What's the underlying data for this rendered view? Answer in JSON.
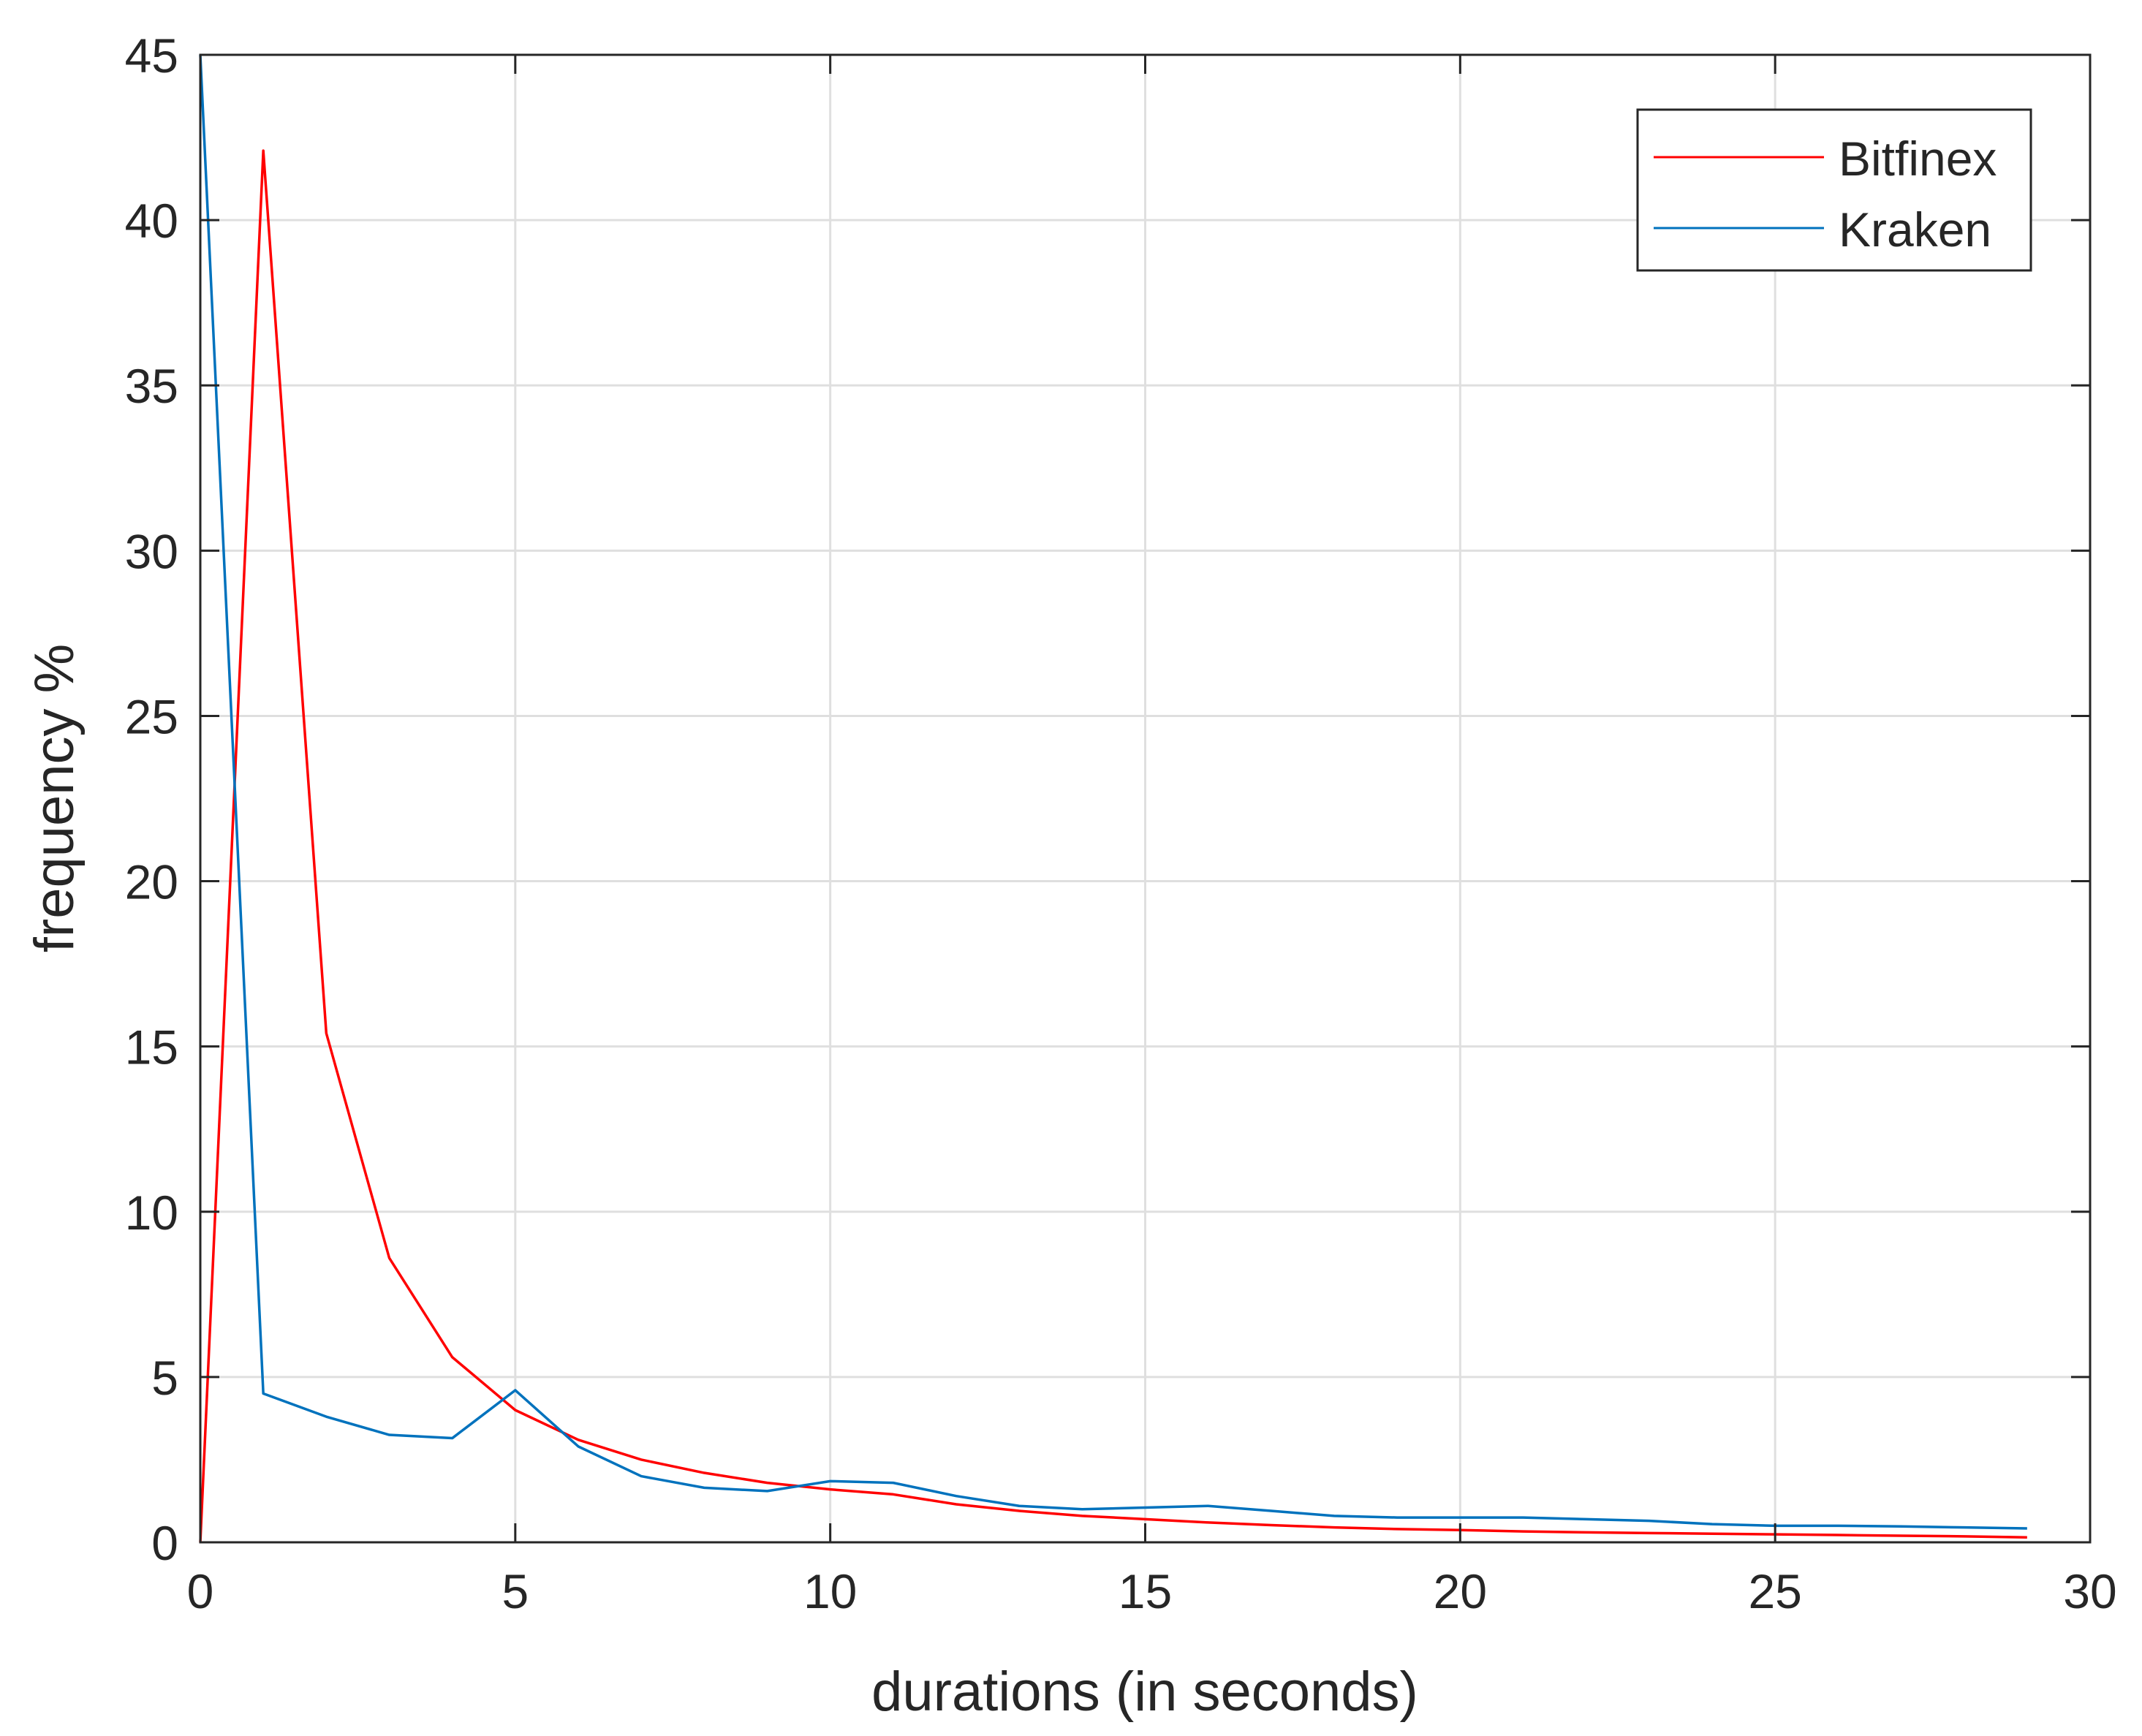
{
  "chart_data": {
    "type": "line",
    "title": "",
    "xlabel": "durations (in seconds)",
    "ylabel": "frequency %",
    "xlim": [
      0,
      30
    ],
    "ylim": [
      0,
      45
    ],
    "xticks": [
      0,
      5,
      10,
      15,
      20,
      25,
      30
    ],
    "yticks": [
      0,
      5,
      10,
      15,
      20,
      25,
      30,
      35,
      40,
      45
    ],
    "grid": true,
    "legend_position": "top-right",
    "x": [
      0,
      1,
      2,
      3,
      4,
      5,
      6,
      7,
      8,
      9,
      10,
      11,
      12,
      13,
      14,
      15,
      16,
      17,
      18,
      19,
      20,
      21,
      22,
      23,
      24,
      25,
      26,
      27,
      28,
      29
    ],
    "series": [
      {
        "name": "Bitfinex",
        "color": "#ff0000",
        "values": [
          0,
          42.1,
          15.4,
          8.6,
          5.6,
          4.0,
          3.1,
          2.5,
          2.1,
          1.8,
          1.6,
          1.45,
          1.15,
          0.95,
          0.8,
          0.7,
          0.6,
          0.52,
          0.45,
          0.4,
          0.37,
          0.33,
          0.3,
          0.28,
          0.26,
          0.24,
          0.22,
          0.2,
          0.18,
          0.15
        ]
      },
      {
        "name": "Kraken",
        "color": "#0072bd",
        "values": [
          45,
          4.5,
          3.8,
          3.25,
          3.15,
          4.6,
          2.9,
          2.0,
          1.65,
          1.55,
          1.85,
          1.8,
          1.4,
          1.1,
          1.0,
          1.05,
          1.1,
          0.95,
          0.8,
          0.75,
          0.75,
          0.75,
          0.7,
          0.65,
          0.55,
          0.5,
          0.5,
          0.48,
          0.45,
          0.42
        ]
      }
    ]
  }
}
